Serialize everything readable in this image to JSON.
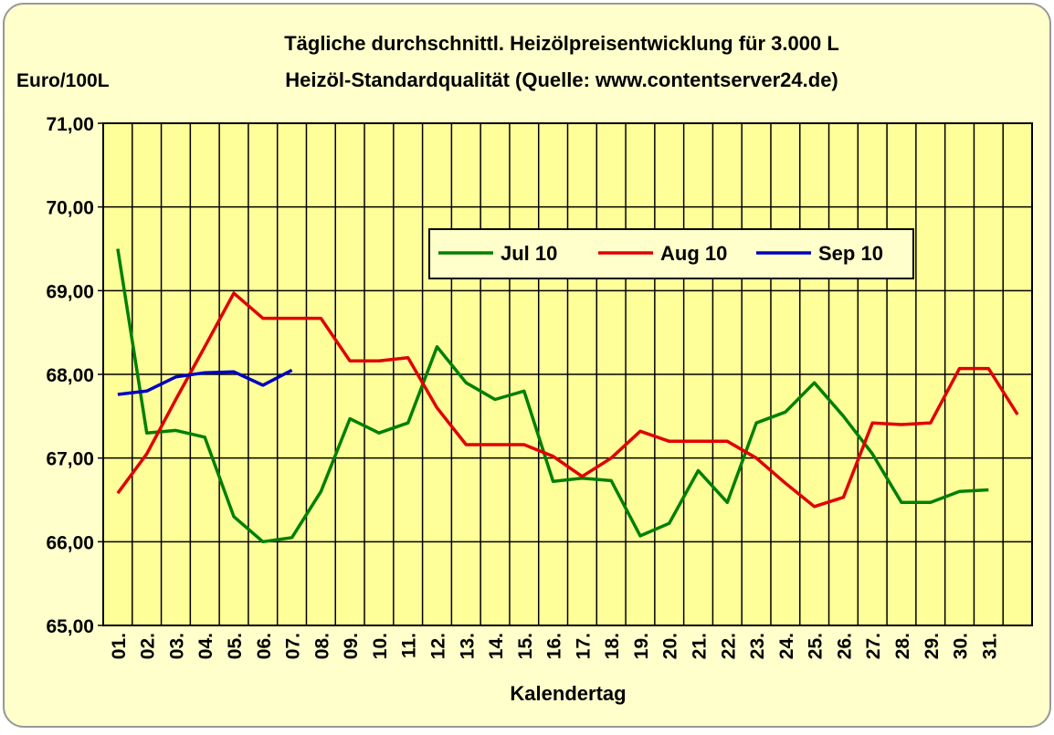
{
  "chart_data": {
    "type": "line",
    "title": "Tägliche durchschnittl. Heizölpreisentwicklung für 3.000 L",
    "subtitle": "Heizöl-Standardqualität (Quelle: www.contentserver24.de)",
    "y_label": "Euro/100L",
    "x_label": "Kalendertag",
    "categories": [
      "01.",
      "02.",
      "03.",
      "04.",
      "05.",
      "06.",
      "07.",
      "08.",
      "09.",
      "10.",
      "11.",
      "12.",
      "13.",
      "14.",
      "15.",
      "16.",
      "17.",
      "18.",
      "19.",
      "20.",
      "21.",
      "22.",
      "23.",
      "24.",
      "25.",
      "26.",
      "27.",
      "28.",
      "29.",
      "30.",
      "31.",
      null
    ],
    "series": [
      {
        "name": "Jul 10",
        "color": "#008000",
        "values": [
          69.5,
          67.3,
          67.33,
          67.25,
          66.3,
          66.0,
          66.05,
          66.6,
          67.47,
          67.3,
          67.42,
          68.33,
          67.9,
          67.7,
          67.8,
          66.72,
          66.76,
          66.73,
          66.07,
          66.22,
          66.85,
          66.47,
          67.42,
          67.55,
          67.9,
          67.5,
          67.05,
          66.47,
          66.47,
          66.6,
          66.62,
          null
        ]
      },
      {
        "name": "Aug 10",
        "color": "#e00000",
        "values": [
          66.58,
          67.05,
          67.7,
          68.33,
          68.97,
          68.67,
          68.67,
          68.67,
          68.16,
          68.16,
          68.2,
          67.6,
          67.16,
          67.16,
          67.16,
          67.02,
          66.78,
          67.0,
          67.32,
          67.2,
          67.2,
          67.2,
          67.0,
          66.7,
          66.42,
          66.53,
          67.42,
          67.4,
          67.42,
          68.07,
          68.07,
          67.52
        ]
      },
      {
        "name": "Sep 10",
        "color": "#0000c0",
        "values": [
          67.76,
          67.8,
          67.97,
          68.02,
          68.03,
          67.87,
          68.05,
          null,
          null,
          null,
          null,
          null,
          null,
          null,
          null,
          null,
          null,
          null,
          null,
          null,
          null,
          null,
          null,
          null,
          null,
          null,
          null,
          null,
          null,
          null,
          null,
          null
        ]
      }
    ],
    "ylim": [
      65,
      71
    ],
    "yticks": [
      {
        "value": 65,
        "label": "65,00"
      },
      {
        "value": 66,
        "label": "66,00"
      },
      {
        "value": 67,
        "label": "67,00"
      },
      {
        "value": 68,
        "label": "68,00"
      },
      {
        "value": 69,
        "label": "69,00"
      },
      {
        "value": 70,
        "label": "70,00"
      },
      {
        "value": 71,
        "label": "71,00"
      }
    ],
    "grid": true
  }
}
